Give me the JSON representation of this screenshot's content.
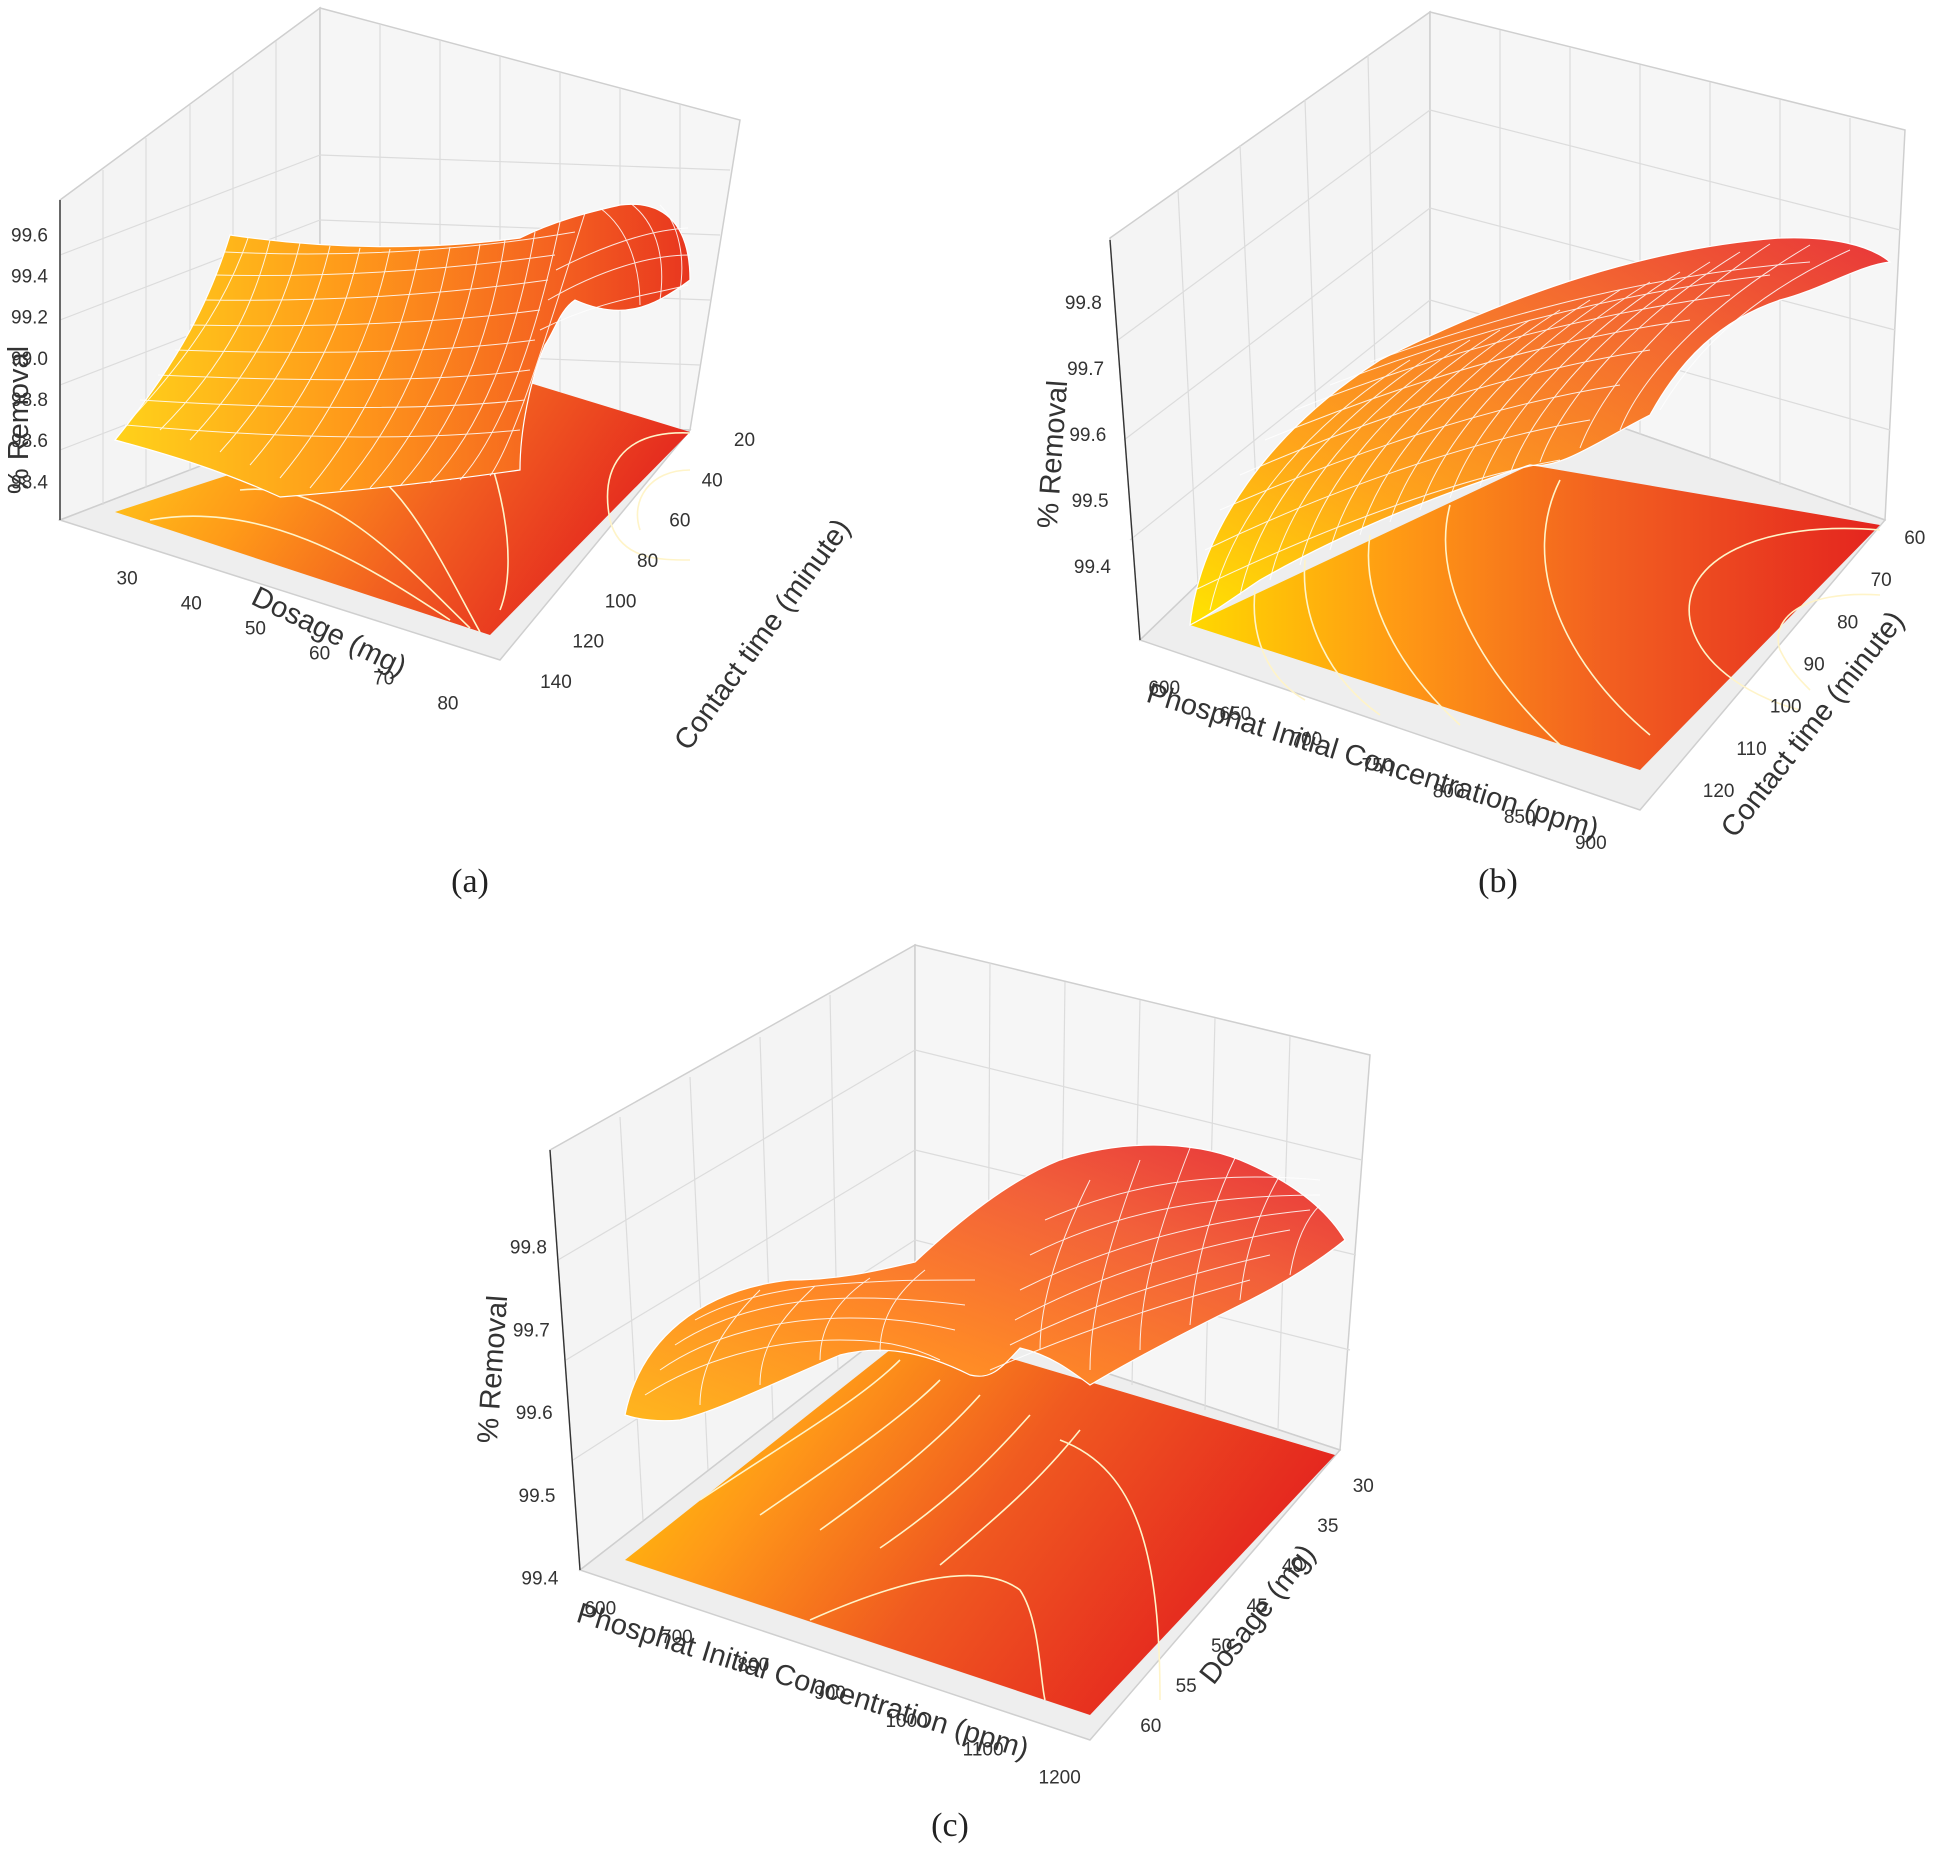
{
  "chart_data": [
    {
      "type": "surface3d",
      "caption": "(a)",
      "x_label": "Dosage (mg)",
      "y_label": "Contact time (minute)",
      "z_label": "% Removal",
      "x_ticks": [
        30,
        40,
        50,
        60,
        70,
        80
      ],
      "y_ticks": [
        20,
        40,
        60,
        80,
        100,
        120,
        140
      ],
      "z_ticks": [
        "98.4",
        "98.6",
        "98.8",
        "99.0",
        "99.2",
        "99.4",
        "99.6"
      ],
      "x_range": [
        25,
        85
      ],
      "y_range": [
        15,
        145
      ],
      "z_range": [
        98.3,
        99.65
      ],
      "surface_z_range": [
        98.55,
        99.5
      ],
      "contour_floor": true,
      "colormap": [
        "#ffe000",
        "#ffa015",
        "#f56a1f",
        "#e32a20"
      ]
    },
    {
      "type": "surface3d",
      "caption": "(b)",
      "x_label": "Phosphat Initial Concentration (ppm)",
      "y_label": "Contact time (minute)",
      "z_label": "% Removal",
      "x_ticks": [
        600,
        650,
        700,
        750,
        800,
        850,
        900
      ],
      "y_ticks": [
        60,
        70,
        80,
        90,
        100,
        110,
        120
      ],
      "z_ticks": [
        "99.4",
        "99.5",
        "99.6",
        "99.7",
        "99.8"
      ],
      "x_range": [
        590,
        910
      ],
      "y_range": [
        55,
        125
      ],
      "z_range": [
        99.35,
        99.88
      ],
      "surface_z_range": [
        99.38,
        99.84
      ],
      "contour_floor": true,
      "colormap": [
        "#ffe000",
        "#ffa015",
        "#f56a1f",
        "#e32a20"
      ]
    },
    {
      "type": "surface3d",
      "caption": "(c)",
      "x_label": "Phosphat Initial Concentration (ppm)",
      "y_label": "Dosage (mg)",
      "z_label": "% Removal",
      "x_ticks": [
        600,
        700,
        800,
        900,
        1000,
        1100,
        1200
      ],
      "y_ticks": [
        30,
        35,
        40,
        45,
        50,
        55,
        60
      ],
      "z_ticks": [
        "99.4",
        "99.5",
        "99.6",
        "99.7",
        "99.8"
      ],
      "x_range": [
        580,
        1220
      ],
      "y_range": [
        27,
        62
      ],
      "z_range": [
        99.38,
        99.9
      ],
      "surface_z_range": [
        99.6,
        99.83
      ],
      "contour_floor": true,
      "colormap": [
        "#ffe000",
        "#ffa015",
        "#f56a1f",
        "#e32a20"
      ]
    }
  ]
}
